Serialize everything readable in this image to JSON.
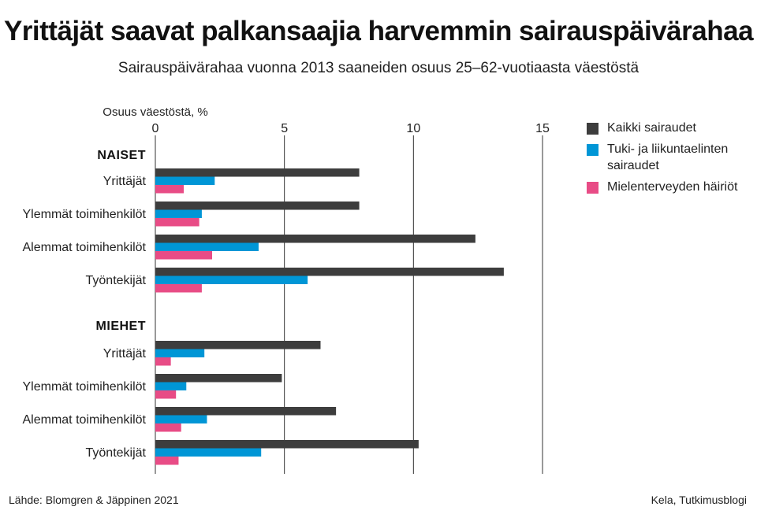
{
  "title": "Yrittäjät saavat palkansaajia harvemmin sairauspäivärahaa",
  "subtitle": "Sairauspäivärahaa vuonna 2013 saaneiden osuus 25–62-vuotiaasta väestöstä",
  "source": "Lähde: Blomgren & Jäppinen 2021",
  "credit": "Kela, Tutkimusblogi",
  "chart_data": {
    "type": "bar",
    "orientation": "horizontal",
    "axis_title": "Osuus väestöstä, %",
    "xlim": [
      0,
      15
    ],
    "ticks": [
      0,
      5,
      10,
      15
    ],
    "grid": true,
    "legend_position": "right",
    "groups": [
      {
        "name": "NAISET",
        "categories": [
          "Yrittäjät",
          "Ylemmät toimihenkilöt",
          "Alemmat toimihenkilöt",
          "Työntekijät"
        ],
        "series": [
          {
            "name": "Kaikki sairaudet",
            "color": "#3d3d3d",
            "values": [
              7.9,
              7.9,
              12.4,
              13.5
            ]
          },
          {
            "name": "Tuki- ja liikuntaelinten sairaudet",
            "color": "#0096d6",
            "values": [
              2.3,
              1.8,
              4.0,
              5.9
            ]
          },
          {
            "name": "Mielenterveyden häiriöt",
            "color": "#e84c86",
            "values": [
              1.1,
              1.7,
              2.2,
              1.8
            ]
          }
        ]
      },
      {
        "name": "MIEHET",
        "categories": [
          "Yrittäjät",
          "Ylemmät toimihenkilöt",
          "Alemmat toimihenkilöt",
          "Työntekijät"
        ],
        "series": [
          {
            "name": "Kaikki sairaudet",
            "color": "#3d3d3d",
            "values": [
              6.4,
              4.9,
              7.0,
              10.2
            ]
          },
          {
            "name": "Tuki- ja liikuntaelinten sairaudet",
            "color": "#0096d6",
            "values": [
              1.9,
              1.2,
              2.0,
              4.1
            ]
          },
          {
            "name": "Mielenterveyden häiriöt",
            "color": "#e84c86",
            "values": [
              0.6,
              0.8,
              1.0,
              0.9
            ]
          }
        ]
      }
    ],
    "legend": [
      {
        "label": "Kaikki sairaudet",
        "color": "#3d3d3d"
      },
      {
        "label": "Tuki- ja liikuntaelinten sairaudet",
        "color": "#0096d6"
      },
      {
        "label": "Mielenterveyden häiriöt",
        "color": "#e84c86"
      }
    ]
  }
}
